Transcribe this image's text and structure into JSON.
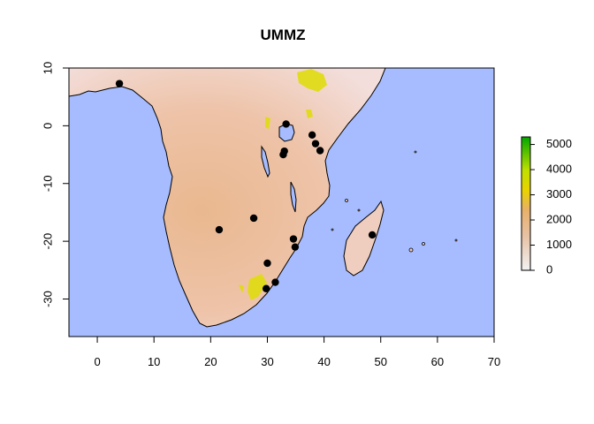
{
  "title": "UMMZ",
  "colors": {
    "ocean": "#a6bcff",
    "land_low": "#f2dcd8",
    "land_mid": "#e9b285",
    "land_high": "#d9d900",
    "land_peak": "#009e00",
    "points": "#000000",
    "coast": "#000000"
  },
  "map": {
    "x_range": [
      -5,
      70
    ],
    "y_range": [
      -36.5,
      10
    ],
    "x_ticks": [
      0,
      10,
      20,
      30,
      40,
      50,
      60,
      70
    ],
    "y_ticks": [
      10,
      0,
      -10,
      -20,
      -30
    ]
  },
  "legend": {
    "ticks": [
      "5000",
      "4000",
      "3000",
      "2000",
      "1000",
      "0"
    ],
    "tick_values": [
      5000,
      4000,
      3000,
      2000,
      1000,
      0
    ],
    "max": 5300,
    "min": 0
  },
  "points": [
    [
      3.9,
      7.3
    ],
    [
      33.3,
      0.3
    ],
    [
      37.9,
      -1.6
    ],
    [
      38.5,
      -3.1
    ],
    [
      33.0,
      -4.4
    ],
    [
      32.8,
      -5.0
    ],
    [
      39.3,
      -4.3
    ],
    [
      27.6,
      -16.0
    ],
    [
      21.5,
      -18.0
    ],
    [
      34.6,
      -19.6
    ],
    [
      34.9,
      -21.0
    ],
    [
      48.5,
      -18.9
    ],
    [
      30.0,
      -23.8
    ],
    [
      31.4,
      -27.1
    ],
    [
      29.8,
      -28.2
    ]
  ]
}
